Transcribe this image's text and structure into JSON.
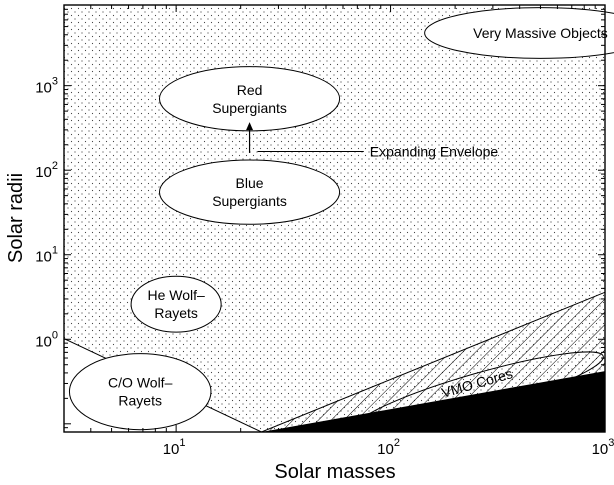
{
  "chart_data": {
    "type": "scatter",
    "title": "",
    "xlabel": "Solar masses",
    "ylabel": "Solar radii",
    "xscale": "log",
    "yscale": "log",
    "xlim": [
      3,
      1000
    ],
    "ylim": [
      0.08,
      9000
    ],
    "grid": false,
    "background": "dotted",
    "x_ticks": [
      {
        "value": 10,
        "base": "10",
        "exp": "1"
      },
      {
        "value": 100,
        "base": "10",
        "exp": "2"
      },
      {
        "value": 1000,
        "base": "10",
        "exp": "3"
      }
    ],
    "y_ticks": [
      {
        "value": 1,
        "base": "10",
        "exp": "0"
      },
      {
        "value": 10,
        "base": "10",
        "exp": "1"
      },
      {
        "value": 100,
        "base": "10",
        "exp": "2"
      },
      {
        "value": 1000,
        "base": "10",
        "exp": "3"
      }
    ],
    "regions": [
      {
        "id": "very-massive",
        "lines": [
          "Very Massive Objects"
        ],
        "center": [
          500,
          4200
        ],
        "rx_decades": 0.54,
        "ry_decades": 0.3
      },
      {
        "id": "red-supergiants",
        "lines": [
          "Red",
          "Supergiants"
        ],
        "center": [
          22,
          700
        ],
        "rx_decades": 0.42,
        "ry_decades": 0.38
      },
      {
        "id": "blue-supergiants",
        "lines": [
          "Blue",
          "Supergiants"
        ],
        "center": [
          22,
          55
        ],
        "rx_decades": 0.42,
        "ry_decades": 0.38
      },
      {
        "id": "he-wolf-rayets",
        "lines": [
          "He Wolf–",
          "Rayets"
        ],
        "center": [
          10,
          2.6
        ],
        "rx_decades": 0.21,
        "ry_decades": 0.33
      },
      {
        "id": "co-wolf-rayets",
        "lines": [
          "C/O Wolf–",
          "Rayets"
        ],
        "center": [
          6.8,
          0.24
        ],
        "rx_decades": 0.33,
        "ry_decades": 0.45
      }
    ],
    "annotations": [
      {
        "id": "expanding-envelope",
        "text": "Expanding Envelope",
        "arrow_x": 22,
        "arrow_from_y": 160,
        "arrow_to_y": 370,
        "label_at": [
          80,
          145
        ]
      }
    ],
    "wedge": {
      "label": "VMO Cores",
      "origin": [
        25,
        0.08
      ],
      "hatched_top_y": 3.6,
      "solid_top_y": 0.42,
      "ellipse_center": [
        260,
        0.24
      ],
      "ellipse_rx_decades": 0.6,
      "ellipse_ry_decades": 0.22,
      "ellipse_rotate_deg": -16
    },
    "boundary_line": {
      "from": [
        3,
        1.02
      ],
      "to": [
        25,
        0.08
      ]
    }
  }
}
